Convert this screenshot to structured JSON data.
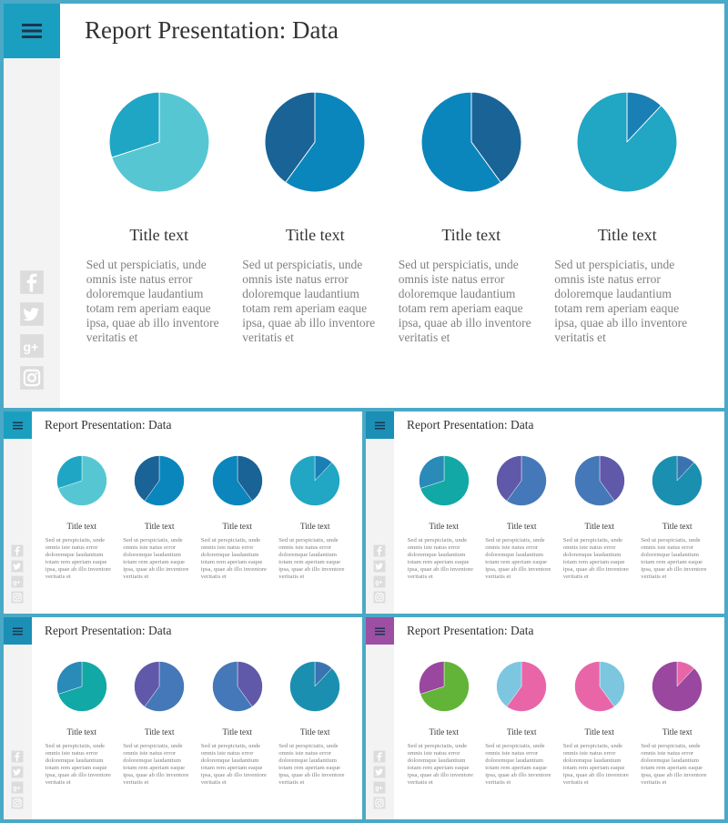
{
  "body_text": "Sed ut perspiciatis, unde omnis  iste natus error doloremque laudantium totam rem aperiam eaque ipsa, quae ab illo inventore veritatis et",
  "social_icons": [
    "facebook-icon",
    "twitter-icon",
    "google-plus-icon",
    "instagram-icon"
  ],
  "slides": [
    {
      "title": "Report Presentation: Data",
      "menu_color": "#1a9fc0",
      "charts": [
        {
          "label": "Title text",
          "slices": [
            {
              "value": 0.7,
              "color": "#56c7d2"
            },
            {
              "value": 0.3,
              "color": "#1fa6c4"
            }
          ]
        },
        {
          "label": "Title text",
          "slices": [
            {
              "value": 0.6,
              "color": "#0a86bc"
            },
            {
              "value": 0.4,
              "color": "#1a6396"
            }
          ]
        },
        {
          "label": "Title text",
          "slices": [
            {
              "value": 0.4,
              "color": "#1a6396"
            },
            {
              "value": 0.6,
              "color": "#0a86bc"
            }
          ]
        },
        {
          "label": "Title text",
          "slices": [
            {
              "value": 0.12,
              "color": "#1a7fb4"
            },
            {
              "value": 0.88,
              "color": "#21a6c4"
            }
          ]
        }
      ]
    },
    {
      "title": "Report Presentation: Data",
      "menu_color": "#1a9fc0",
      "charts": [
        {
          "label": "Title text",
          "slices": [
            {
              "value": 0.7,
              "color": "#56c7d2"
            },
            {
              "value": 0.3,
              "color": "#1fa6c4"
            }
          ]
        },
        {
          "label": "Title text",
          "slices": [
            {
              "value": 0.6,
              "color": "#0a86bc"
            },
            {
              "value": 0.4,
              "color": "#1a6396"
            }
          ]
        },
        {
          "label": "Title text",
          "slices": [
            {
              "value": 0.4,
              "color": "#1a6396"
            },
            {
              "value": 0.6,
              "color": "#0a86bc"
            }
          ]
        },
        {
          "label": "Title text",
          "slices": [
            {
              "value": 0.12,
              "color": "#1a7fb4"
            },
            {
              "value": 0.88,
              "color": "#21a6c4"
            }
          ]
        }
      ]
    },
    {
      "title": "Report Presentation: Data",
      "menu_color": "#1b8fb5",
      "charts": [
        {
          "label": "Title text",
          "slices": [
            {
              "value": 0.7,
              "color": "#11a8a5"
            },
            {
              "value": 0.3,
              "color": "#2a8ab8"
            }
          ]
        },
        {
          "label": "Title text",
          "slices": [
            {
              "value": 0.6,
              "color": "#4578b8"
            },
            {
              "value": 0.4,
              "color": "#6059a9"
            }
          ]
        },
        {
          "label": "Title text",
          "slices": [
            {
              "value": 0.4,
              "color": "#6059a9"
            },
            {
              "value": 0.6,
              "color": "#4578b8"
            }
          ]
        },
        {
          "label": "Title text",
          "slices": [
            {
              "value": 0.12,
              "color": "#3a74b0"
            },
            {
              "value": 0.88,
              "color": "#1b8fb0"
            }
          ]
        }
      ]
    },
    {
      "title": "Report Presentation: Data",
      "menu_color": "#1b8fb5",
      "charts": [
        {
          "label": "Title text",
          "slices": [
            {
              "value": 0.7,
              "color": "#11a8a5"
            },
            {
              "value": 0.3,
              "color": "#2a8ab8"
            }
          ]
        },
        {
          "label": "Title text",
          "slices": [
            {
              "value": 0.6,
              "color": "#4578b8"
            },
            {
              "value": 0.4,
              "color": "#6059a9"
            }
          ]
        },
        {
          "label": "Title text",
          "slices": [
            {
              "value": 0.4,
              "color": "#6059a9"
            },
            {
              "value": 0.6,
              "color": "#4578b8"
            }
          ]
        },
        {
          "label": "Title text",
          "slices": [
            {
              "value": 0.12,
              "color": "#3a74b0"
            },
            {
              "value": 0.88,
              "color": "#1b8fb0"
            }
          ]
        }
      ]
    },
    {
      "title": "Report Presentation: Data",
      "menu_color": "#9c4fa3",
      "charts": [
        {
          "label": "Title text",
          "slices": [
            {
              "value": 0.7,
              "color": "#62b438"
            },
            {
              "value": 0.3,
              "color": "#99479f"
            }
          ]
        },
        {
          "label": "Title text",
          "slices": [
            {
              "value": 0.6,
              "color": "#e866a8"
            },
            {
              "value": 0.4,
              "color": "#7cc6e0"
            }
          ]
        },
        {
          "label": "Title text",
          "slices": [
            {
              "value": 0.4,
              "color": "#7cc6e0"
            },
            {
              "value": 0.6,
              "color": "#e866a8"
            }
          ]
        },
        {
          "label": "Title text",
          "slices": [
            {
              "value": 0.12,
              "color": "#e866a8"
            },
            {
              "value": 0.88,
              "color": "#99479f"
            }
          ]
        }
      ]
    }
  ]
}
